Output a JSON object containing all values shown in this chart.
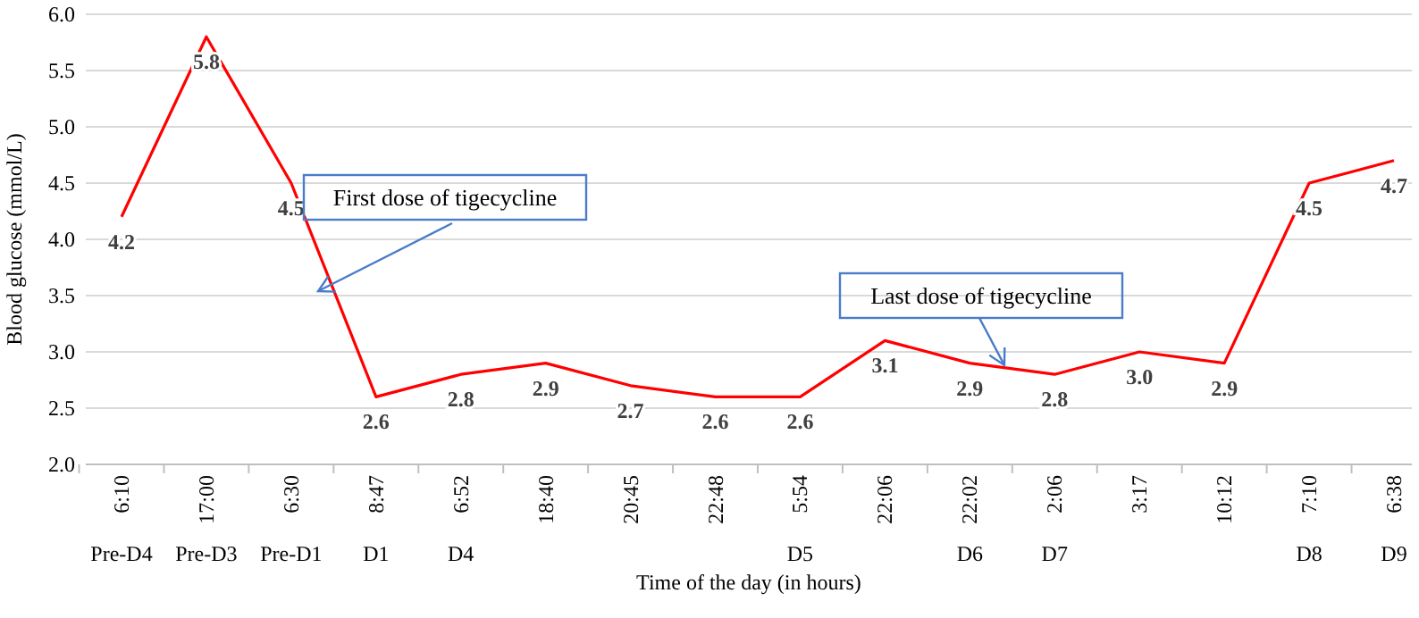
{
  "chart_data": {
    "type": "line",
    "xlabel": "Time of the day (in hours)",
    "ylabel": "Blood glucose (mmol/L)",
    "categories": [
      "6:10\nPre-D4",
      "17:00\nPre-D3",
      "6:30\nPre-D1",
      "8:47\nD1",
      "6:52\nD4",
      "18:40",
      "20:45",
      "22:48",
      "5:54\nD5",
      "22:06",
      "22:02\nD6",
      "2:06\nD7",
      "3:17",
      "10:12",
      "7:10\nD8",
      "6:38\nD9"
    ],
    "series": [
      {
        "color": "#ff0000",
        "values": [
          4.2,
          5.8,
          4.5,
          2.6,
          2.8,
          2.9,
          2.7,
          2.6,
          2.6,
          3.1,
          2.9,
          2.8,
          3.0,
          2.9,
          4.5,
          4.7
        ],
        "value_labels": [
          "4.2",
          "5.8",
          "4.5",
          "2.6",
          "2.8",
          "2.9",
          "2.7",
          "2.6",
          "2.6",
          "3.1",
          "2.9",
          "2.8",
          "3.0",
          "2.9",
          "4.5",
          "4.7"
        ]
      }
    ],
    "ylim": [
      2.0,
      6.0
    ],
    "yticks": [
      {
        "value": 2.0,
        "label": "2.0"
      },
      {
        "value": 2.5,
        "label": "2.5"
      },
      {
        "value": 3.0,
        "label": "3.0"
      },
      {
        "value": 3.5,
        "label": "3.5"
      },
      {
        "value": 4.0,
        "label": "4.0"
      },
      {
        "value": 4.5,
        "label": "4.5"
      },
      {
        "value": 5.0,
        "label": "5.0"
      },
      {
        "value": 5.5,
        "label": "5.5"
      },
      {
        "value": 6.0,
        "label": "6.0"
      }
    ],
    "grid": "y",
    "marker": "none",
    "line_style": "solid",
    "annotations": [
      "First dose of tigecycline",
      {
        "text": "Last dose of tigecycline",
        "y": 2.85
      }
    ]
  }
}
